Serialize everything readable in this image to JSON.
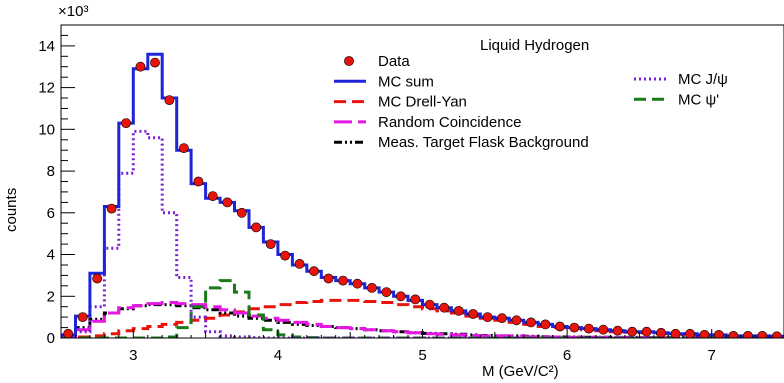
{
  "chart_data": {
    "type": "line",
    "title": "Liquid Hydrogen",
    "xlabel": "M (GeV/C²)",
    "ylabel": "counts",
    "y_multiplier_label": "×10³",
    "xlim": [
      2.5,
      7.5
    ],
    "ylim": [
      0,
      15
    ],
    "xticks": [
      3,
      4,
      5,
      6,
      7
    ],
    "yticks": [
      0,
      2,
      4,
      6,
      8,
      10,
      12,
      14
    ],
    "bin_width": 0.1,
    "bin_left_edges": [
      2.5,
      2.6,
      2.7,
      2.8,
      2.9,
      3.0,
      3.1,
      3.2,
      3.3,
      3.4,
      3.5,
      3.6,
      3.7,
      3.8,
      3.9,
      4.0,
      4.1,
      4.2,
      4.3,
      4.4,
      4.5,
      4.6,
      4.7,
      4.8,
      4.9,
      5.0,
      5.1,
      5.2,
      5.3,
      5.4,
      5.5,
      5.6,
      5.7,
      5.8,
      5.9,
      6.0,
      6.1,
      6.2,
      6.3,
      6.4,
      6.5,
      6.6,
      6.7,
      6.8,
      6.9,
      7.0,
      7.1,
      7.2,
      7.3,
      7.4
    ],
    "series": [
      {
        "name": "Data",
        "style": "markers",
        "color": "#e8140c",
        "x": [
          2.55,
          2.65,
          2.75,
          2.85,
          2.95,
          3.05,
          3.15,
          3.25,
          3.35,
          3.45,
          3.55,
          3.65,
          3.75,
          3.85,
          3.95,
          4.05,
          4.15,
          4.25,
          4.35,
          4.45,
          4.55,
          4.65,
          4.75,
          4.85,
          4.95,
          5.05,
          5.15,
          5.25,
          5.35,
          5.45,
          5.55,
          5.65,
          5.75,
          5.85,
          5.95,
          6.05,
          6.15,
          6.25,
          6.35,
          6.45,
          6.55,
          6.65,
          6.75,
          6.85,
          6.95,
          7.05,
          7.15,
          7.25,
          7.35,
          7.45
        ],
        "values": [
          0.2,
          1.0,
          2.85,
          6.2,
          10.3,
          13.0,
          13.2,
          11.4,
          9.1,
          7.5,
          6.8,
          6.5,
          6.0,
          5.3,
          4.5,
          3.95,
          3.55,
          3.2,
          2.85,
          2.75,
          2.6,
          2.4,
          2.2,
          2.0,
          1.85,
          1.6,
          1.45,
          1.3,
          1.15,
          1.0,
          0.95,
          0.85,
          0.75,
          0.65,
          0.55,
          0.5,
          0.45,
          0.4,
          0.35,
          0.3,
          0.3,
          0.25,
          0.2,
          0.2,
          0.15,
          0.15,
          0.1,
          0.1,
          0.1,
          0.08
        ]
      },
      {
        "name": "MC sum",
        "style": "step",
        "color": "#1f24d8",
        "values": [
          0.15,
          1.05,
          3.1,
          6.3,
          10.3,
          12.9,
          13.6,
          11.5,
          9.0,
          7.4,
          6.7,
          6.5,
          6.1,
          5.3,
          4.6,
          4.0,
          3.5,
          3.2,
          2.9,
          2.75,
          2.6,
          2.4,
          2.2,
          2.0,
          1.8,
          1.6,
          1.45,
          1.3,
          1.15,
          1.0,
          0.95,
          0.85,
          0.75,
          0.65,
          0.55,
          0.5,
          0.45,
          0.4,
          0.35,
          0.3,
          0.3,
          0.25,
          0.2,
          0.2,
          0.15,
          0.15,
          0.1,
          0.1,
          0.1,
          0.08
        ]
      },
      {
        "name": "MC J/ψ",
        "style": "step-dotted",
        "color": "#7a1fd4",
        "values": [
          0.0,
          0.3,
          1.5,
          4.3,
          7.9,
          9.9,
          9.6,
          6.0,
          2.9,
          1.0,
          0.3,
          0.1,
          0.05,
          0.02,
          0.0,
          0.0,
          0.0,
          0.0,
          0.0,
          0.0,
          0.0,
          0.0,
          0.0,
          0.0,
          0.0,
          0.0,
          0.0,
          0.0,
          0.0,
          0.0,
          0.0,
          0.0,
          0.0,
          0.0,
          0.0,
          0.0,
          0.0,
          0.0,
          0.0,
          0.0,
          0.0,
          0.0,
          0.0,
          0.0,
          0.0,
          0.0,
          0.0,
          0.0,
          0.0,
          0.0
        ]
      },
      {
        "name": "MC Drell-Yan",
        "style": "step-dashed",
        "color": "#e8140c",
        "values": [
          0.0,
          0.05,
          0.1,
          0.2,
          0.35,
          0.45,
          0.55,
          0.65,
          0.75,
          0.85,
          0.95,
          1.1,
          1.25,
          1.4,
          1.5,
          1.6,
          1.7,
          1.75,
          1.8,
          1.8,
          1.8,
          1.75,
          1.7,
          1.6,
          1.5,
          1.4,
          1.3,
          1.2,
          1.05,
          0.95,
          0.85,
          0.75,
          0.65,
          0.55,
          0.5,
          0.45,
          0.4,
          0.35,
          0.3,
          0.28,
          0.25,
          0.2,
          0.18,
          0.15,
          0.12,
          0.1,
          0.1,
          0.08,
          0.08,
          0.06
        ]
      },
      {
        "name": "Random Coincidence",
        "style": "step-longdash",
        "color": "#e617e3",
        "values": [
          0.1,
          0.4,
          0.8,
          1.2,
          1.45,
          1.55,
          1.65,
          1.7,
          1.65,
          1.6,
          1.5,
          1.35,
          1.2,
          1.05,
          0.95,
          0.85,
          0.75,
          0.65,
          0.55,
          0.5,
          0.45,
          0.4,
          0.35,
          0.3,
          0.25,
          0.2,
          0.18,
          0.15,
          0.12,
          0.1,
          0.1,
          0.08,
          0.06,
          0.05,
          0.05,
          0.04,
          0.04,
          0.03,
          0.03,
          0.02,
          0.02,
          0.02,
          0.01,
          0.01,
          0.01,
          0.01,
          0.01,
          0.0,
          0.0,
          0.0
        ]
      },
      {
        "name": "Meas. Target Flask Background",
        "style": "step-dashdot",
        "color": "#000000",
        "values": [
          0.1,
          0.5,
          0.9,
          1.2,
          1.4,
          1.55,
          1.6,
          1.6,
          1.55,
          1.45,
          1.35,
          1.2,
          1.05,
          0.95,
          0.85,
          0.75,
          0.65,
          0.6,
          0.55,
          0.5,
          0.45,
          0.4,
          0.35,
          0.3,
          0.25,
          0.22,
          0.2,
          0.18,
          0.15,
          0.12,
          0.1,
          0.1,
          0.08,
          0.06,
          0.05,
          0.05,
          0.04,
          0.04,
          0.03,
          0.03,
          0.02,
          0.02,
          0.02,
          0.01,
          0.01,
          0.01,
          0.01,
          0.0,
          0.0,
          0.0
        ]
      },
      {
        "name": "MC ψ'",
        "style": "step-dashed",
        "color": "#1a7a1a",
        "values": [
          0.0,
          0.0,
          0.0,
          0.0,
          0.0,
          0.0,
          0.0,
          0.05,
          0.5,
          1.5,
          2.4,
          2.75,
          2.2,
          1.1,
          0.4,
          0.15,
          0.05,
          0.02,
          0.0,
          0.0,
          0.0,
          0.0,
          0.0,
          0.0,
          0.0,
          0.0,
          0.0,
          0.0,
          0.0,
          0.0,
          0.0,
          0.0,
          0.0,
          0.0,
          0.0,
          0.0,
          0.0,
          0.0,
          0.0,
          0.0,
          0.0,
          0.0,
          0.0,
          0.0,
          0.0,
          0.0,
          0.0,
          0.0,
          0.0,
          0.0
        ]
      }
    ],
    "legend": {
      "placement": "top-right",
      "left_column": [
        "Data",
        "MC sum",
        "MC Drell-Yan",
        "Random Coincidence",
        "Meas. Target Flask Background"
      ],
      "right_column": [
        "MC J/ψ",
        "MC ψ'"
      ]
    },
    "grid": false
  }
}
